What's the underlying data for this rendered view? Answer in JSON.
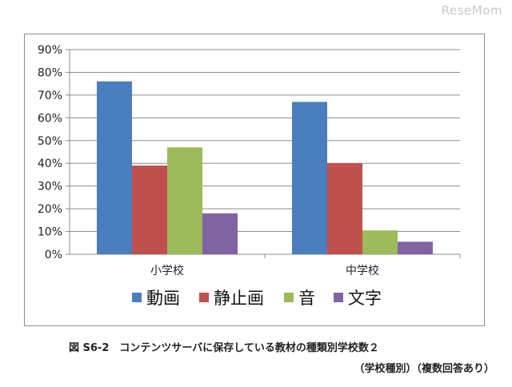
{
  "watermark": "ReseMom",
  "caption": "図 S6-2　コンテンツサーバに保存している教材の種類別学校数２",
  "subcaption": "（学校種別）（複数回答あり）",
  "chart_data": {
    "type": "bar",
    "categories": [
      "小学校",
      "中学校"
    ],
    "series": [
      {
        "name": "動画",
        "values": [
          76,
          67
        ],
        "color": "#4a7ebf"
      },
      {
        "name": "静止画",
        "values": [
          39,
          40
        ],
        "color": "#c0504d"
      },
      {
        "name": "音",
        "values": [
          47,
          10.5
        ],
        "color": "#9bbb59"
      },
      {
        "name": "文字",
        "values": [
          18,
          5.5
        ],
        "color": "#8064a2"
      }
    ],
    "ylim": [
      0,
      90
    ],
    "yticks": [
      "0%",
      "10%",
      "20%",
      "30%",
      "40%",
      "50%",
      "60%",
      "70%",
      "80%",
      "90%"
    ],
    "grid": true,
    "legend_position": "bottom"
  }
}
